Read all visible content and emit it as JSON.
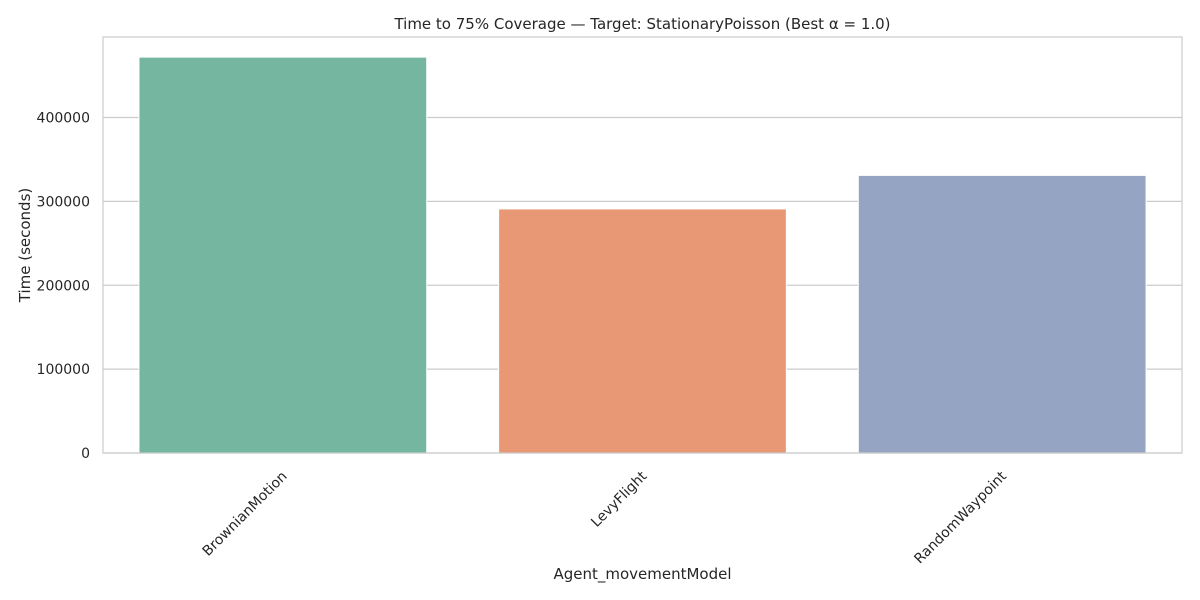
{
  "chart_data": {
    "type": "bar",
    "title": "Time to 75% Coverage — Target: StationaryPoisson (Best α = 1.0)",
    "xlabel": "Agent_movementModel",
    "ylabel": "Time (seconds)",
    "categories": [
      "BrownianMotion",
      "LevyFlight",
      "RandomWaypoint"
    ],
    "values": [
      472000,
      291000,
      331000
    ],
    "colors": [
      "#74b6a0",
      "#e89875",
      "#96a4c4"
    ],
    "yticks": [
      0,
      100000,
      200000,
      300000,
      400000
    ],
    "ylim": [
      0,
      496000
    ],
    "grid": "horizontal",
    "xtick_rotation": -45
  }
}
